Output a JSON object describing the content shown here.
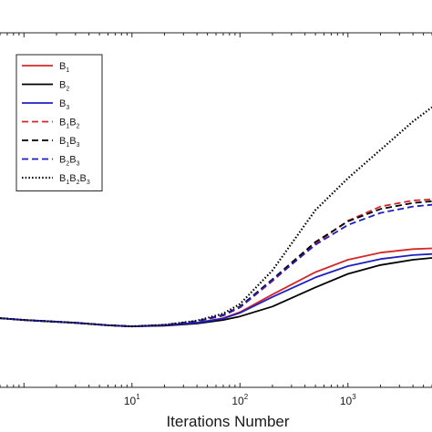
{
  "chart_data": {
    "type": "line",
    "title": "",
    "xlabel": "Iterations Number",
    "ylabel": "",
    "xscale": "log",
    "xlim": [
      0.6,
      6000
    ],
    "ylim": [
      0,
      1
    ],
    "grid": false,
    "legend_position": "top-left",
    "x_ticks": [
      {
        "base": "10",
        "exp": "1",
        "value": 10
      },
      {
        "base": "10",
        "exp": "2",
        "value": 100
      },
      {
        "base": "10",
        "exp": "3",
        "value": 1000
      }
    ],
    "series": [
      {
        "name": "B1",
        "label_parts": [
          {
            "t": "B"
          },
          {
            "s": "1"
          }
        ],
        "color": "#d62728",
        "dash": "solid",
        "points": [
          [
            0.6,
            0.195
          ],
          [
            1,
            0.19
          ],
          [
            3,
            0.182
          ],
          [
            6,
            0.175
          ],
          [
            10,
            0.172
          ],
          [
            20,
            0.175
          ],
          [
            40,
            0.182
          ],
          [
            70,
            0.195
          ],
          [
            100,
            0.212
          ],
          [
            200,
            0.262
          ],
          [
            500,
            0.325
          ],
          [
            1000,
            0.36
          ],
          [
            2000,
            0.38
          ],
          [
            4000,
            0.39
          ],
          [
            6000,
            0.392
          ]
        ]
      },
      {
        "name": "B2",
        "label_parts": [
          {
            "t": "B"
          },
          {
            "s": "2"
          }
        ],
        "color": "#000000",
        "dash": "solid",
        "points": [
          [
            0.6,
            0.195
          ],
          [
            1,
            0.19
          ],
          [
            3,
            0.182
          ],
          [
            6,
            0.175
          ],
          [
            10,
            0.172
          ],
          [
            20,
            0.174
          ],
          [
            40,
            0.18
          ],
          [
            70,
            0.19
          ],
          [
            100,
            0.2
          ],
          [
            200,
            0.228
          ],
          [
            500,
            0.282
          ],
          [
            1000,
            0.32
          ],
          [
            2000,
            0.345
          ],
          [
            4000,
            0.36
          ],
          [
            6000,
            0.365
          ]
        ]
      },
      {
        "name": "B3",
        "label_parts": [
          {
            "t": "B"
          },
          {
            "s": "3"
          }
        ],
        "color": "#1f1fbf",
        "dash": "solid",
        "points": [
          [
            0.6,
            0.195
          ],
          [
            1,
            0.19
          ],
          [
            3,
            0.182
          ],
          [
            6,
            0.175
          ],
          [
            10,
            0.172
          ],
          [
            20,
            0.175
          ],
          [
            40,
            0.182
          ],
          [
            70,
            0.194
          ],
          [
            100,
            0.21
          ],
          [
            200,
            0.255
          ],
          [
            500,
            0.31
          ],
          [
            1000,
            0.342
          ],
          [
            2000,
            0.362
          ],
          [
            4000,
            0.373
          ],
          [
            6000,
            0.376
          ]
        ]
      },
      {
        "name": "B1B2",
        "label_parts": [
          {
            "t": "B"
          },
          {
            "s": "1"
          },
          {
            "t": "B"
          },
          {
            "s": "2"
          }
        ],
        "color": "#d62728",
        "dash": "dashed",
        "points": [
          [
            0.6,
            0.195
          ],
          [
            1,
            0.19
          ],
          [
            3,
            0.182
          ],
          [
            6,
            0.175
          ],
          [
            10,
            0.172
          ],
          [
            20,
            0.176
          ],
          [
            40,
            0.186
          ],
          [
            70,
            0.202
          ],
          [
            100,
            0.225
          ],
          [
            200,
            0.3
          ],
          [
            500,
            0.405
          ],
          [
            1000,
            0.47
          ],
          [
            2000,
            0.51
          ],
          [
            4000,
            0.527
          ],
          [
            6000,
            0.53
          ]
        ]
      },
      {
        "name": "B1B3",
        "label_parts": [
          {
            "t": "B"
          },
          {
            "s": "1"
          },
          {
            "t": "B"
          },
          {
            "s": "3"
          }
        ],
        "color": "#000000",
        "dash": "dashed",
        "points": [
          [
            0.6,
            0.195
          ],
          [
            1,
            0.19
          ],
          [
            3,
            0.182
          ],
          [
            6,
            0.175
          ],
          [
            10,
            0.172
          ],
          [
            20,
            0.176
          ],
          [
            40,
            0.187
          ],
          [
            70,
            0.204
          ],
          [
            100,
            0.228
          ],
          [
            200,
            0.305
          ],
          [
            500,
            0.41
          ],
          [
            1000,
            0.468
          ],
          [
            2000,
            0.503
          ],
          [
            4000,
            0.52
          ],
          [
            6000,
            0.525
          ]
        ]
      },
      {
        "name": "B2B3",
        "label_parts": [
          {
            "t": "B"
          },
          {
            "s": "2"
          },
          {
            "t": "B"
          },
          {
            "s": "3"
          }
        ],
        "color": "#1f1fbf",
        "dash": "dashed",
        "points": [
          [
            0.6,
            0.195
          ],
          [
            1,
            0.19
          ],
          [
            3,
            0.182
          ],
          [
            6,
            0.175
          ],
          [
            10,
            0.172
          ],
          [
            20,
            0.176
          ],
          [
            40,
            0.186
          ],
          [
            70,
            0.203
          ],
          [
            100,
            0.226
          ],
          [
            200,
            0.302
          ],
          [
            500,
            0.402
          ],
          [
            1000,
            0.458
          ],
          [
            2000,
            0.492
          ],
          [
            4000,
            0.51
          ],
          [
            6000,
            0.515
          ]
        ]
      },
      {
        "name": "B1B2B3",
        "label_parts": [
          {
            "t": "B"
          },
          {
            "s": "1"
          },
          {
            "t": "B"
          },
          {
            "s": "2"
          },
          {
            "t": "B"
          },
          {
            "s": "3"
          }
        ],
        "color": "#000000",
        "dash": "dotted",
        "points": [
          [
            0.6,
            0.195
          ],
          [
            1,
            0.19
          ],
          [
            3,
            0.182
          ],
          [
            6,
            0.175
          ],
          [
            10,
            0.172
          ],
          [
            20,
            0.176
          ],
          [
            40,
            0.188
          ],
          [
            70,
            0.208
          ],
          [
            100,
            0.235
          ],
          [
            200,
            0.33
          ],
          [
            500,
            0.5
          ],
          [
            1000,
            0.59
          ],
          [
            2000,
            0.67
          ],
          [
            4000,
            0.75
          ],
          [
            6000,
            0.79
          ]
        ]
      }
    ]
  }
}
